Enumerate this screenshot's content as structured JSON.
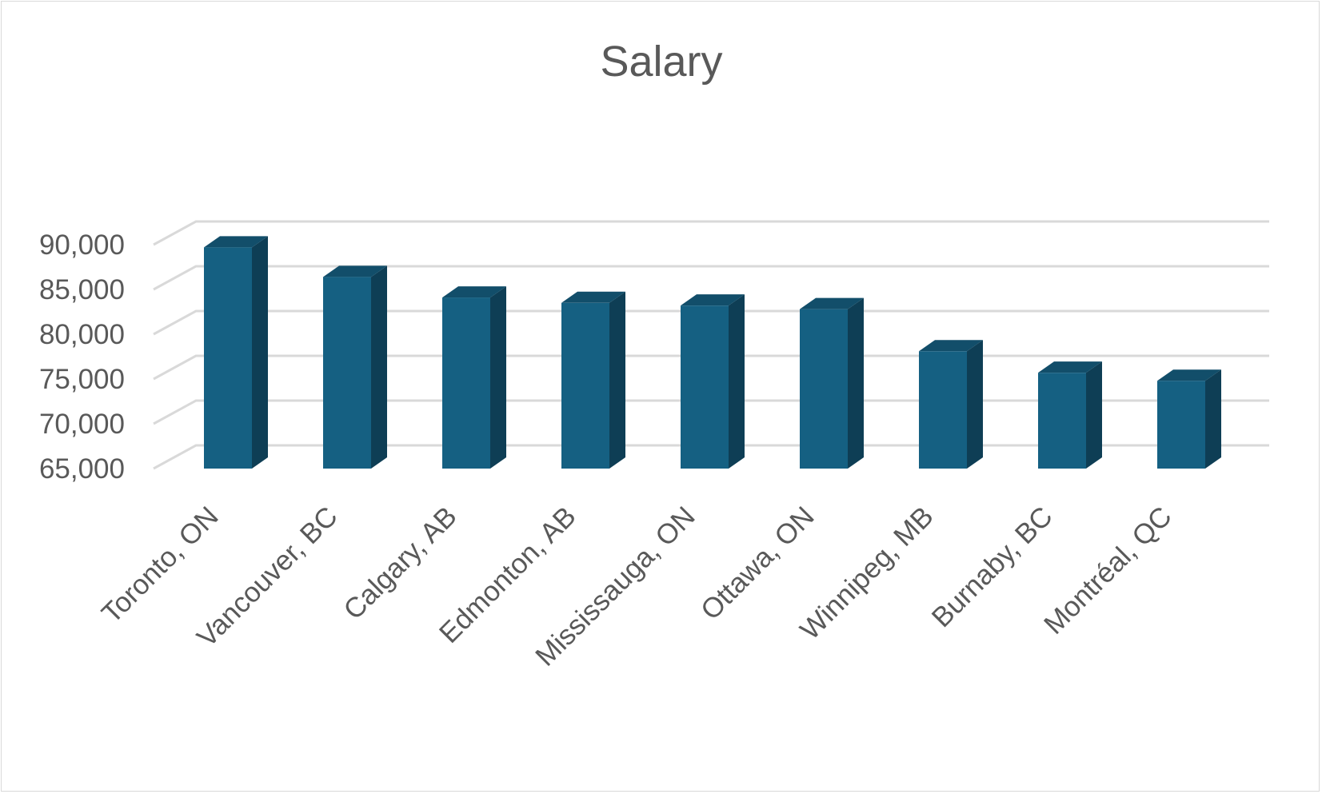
{
  "chart_data": {
    "type": "bar",
    "title": "Salary",
    "xlabel": "",
    "ylabel": "",
    "categories": [
      "Toronto, ON",
      "Vancouver, BC",
      "Calgary, AB",
      "Edmonton, AB",
      "Mississauga, ON",
      "Ottawa, ON",
      "Winnipeg, MB",
      "Burnaby, BC",
      "Montréal, QC"
    ],
    "values": [
      89700,
      86400,
      84100,
      83500,
      83200,
      82800,
      78100,
      75700,
      74800
    ],
    "ylim": [
      65000,
      90000
    ],
    "y_ticks": [
      65000,
      70000,
      75000,
      80000,
      85000,
      90000
    ],
    "y_tick_labels": [
      "65,000",
      "70,000",
      "75,000",
      "80,000",
      "85,000",
      "90,000"
    ],
    "grid": true,
    "style": "3d-column",
    "colors": {
      "bar_front": "#156082",
      "bar_side": "#0e3e55",
      "bar_top": "#124e6a",
      "gridline": "#d9d9d9",
      "text": "#595959"
    }
  }
}
